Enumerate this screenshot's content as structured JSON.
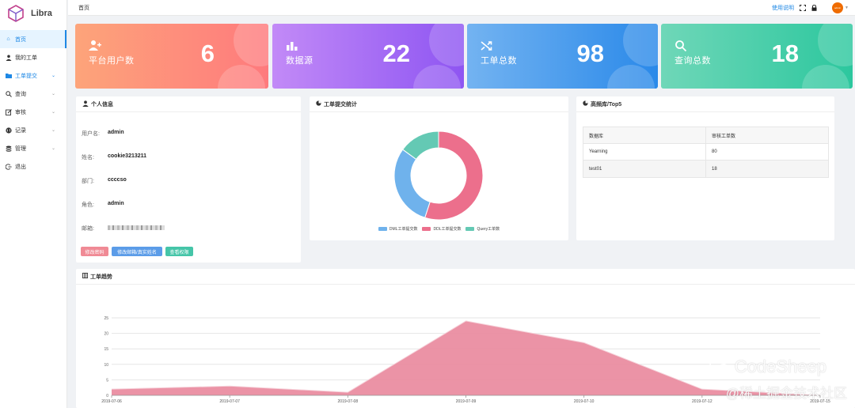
{
  "app": {
    "title": "Libra"
  },
  "sidebar": {
    "items": [
      {
        "label": "首页",
        "icon": "home-icon"
      },
      {
        "label": "我的工单",
        "icon": "user-icon"
      },
      {
        "label": "工单提交",
        "icon": "folder-icon"
      },
      {
        "label": "查询",
        "icon": "search-icon"
      },
      {
        "label": "审核",
        "icon": "edit-icon"
      },
      {
        "label": "记录",
        "icon": "globe-icon"
      },
      {
        "label": "管理",
        "icon": "database-icon"
      },
      {
        "label": "退出",
        "icon": "logout-icon"
      }
    ]
  },
  "header": {
    "breadcrumb": "首页",
    "help_label": "使用说明",
    "avatar_text": "admin"
  },
  "stats": [
    {
      "label": "平台用户数",
      "value": "6",
      "icon": "users-icon"
    },
    {
      "label": "数据源",
      "value": "22",
      "icon": "bar-chart-icon"
    },
    {
      "label": "工单总数",
      "value": "98",
      "icon": "shuffle-icon"
    },
    {
      "label": "查询总数",
      "value": "18",
      "icon": "search-icon"
    }
  ],
  "profile": {
    "title": "个人信息",
    "fields": [
      {
        "key": "用户名:",
        "value": "admin"
      },
      {
        "key": "姓名:",
        "value": "cookie3213211"
      },
      {
        "key": "部门:",
        "value": "ccccso"
      },
      {
        "key": "角色:",
        "value": "admin"
      },
      {
        "key": "邮箱:",
        "value": ""
      }
    ],
    "buttons": [
      {
        "label": "修改密码",
        "color": "#f08a95"
      },
      {
        "label": "修改邮箱/真实姓名",
        "color": "#5b9ce8"
      },
      {
        "label": "查看权限",
        "color": "#45c5a8"
      }
    ]
  },
  "submit_stats": {
    "title": "工单提交统计",
    "legend": [
      {
        "label": "DML工单提交数",
        "color": "#6fb2ec"
      },
      {
        "label": "DDL工单提交数",
        "color": "#ec6f8c"
      },
      {
        "label": "Query工单数",
        "color": "#64c9b4"
      }
    ]
  },
  "top5": {
    "title": "高频库/Top5",
    "headers": [
      "数据库",
      "审核工单数"
    ],
    "rows": [
      [
        "Yearning",
        "80"
      ],
      [
        "test01",
        "18"
      ]
    ]
  },
  "trend": {
    "title": "工单趋势"
  },
  "chart_data": [
    {
      "type": "pie",
      "title": "工单提交统计",
      "donut": true,
      "series": [
        {
          "name": "DML工单提交数",
          "value": 30
        },
        {
          "name": "DDL工单提交数",
          "value": 55
        },
        {
          "name": "Query工单数",
          "value": 15
        }
      ],
      "colors": [
        "#6fb2ec",
        "#ec6f8c",
        "#64c9b4"
      ]
    },
    {
      "type": "area",
      "title": "工单趋势",
      "x": [
        "2019-07-06",
        "2019-07-07",
        "2019-07-08",
        "2019-07-09",
        "2019-07-10",
        "2019-07-12",
        "2019-07-15"
      ],
      "values": [
        2,
        3,
        1,
        24,
        17,
        2,
        0
      ],
      "ylim": [
        0,
        25
      ],
      "yticks": [
        0,
        5,
        10,
        15,
        20,
        25
      ],
      "grid": true,
      "color": "#e98a9e"
    }
  ],
  "watermark": {
    "main": "CodeSheep",
    "sub": "@稀土掘金技术社区"
  }
}
